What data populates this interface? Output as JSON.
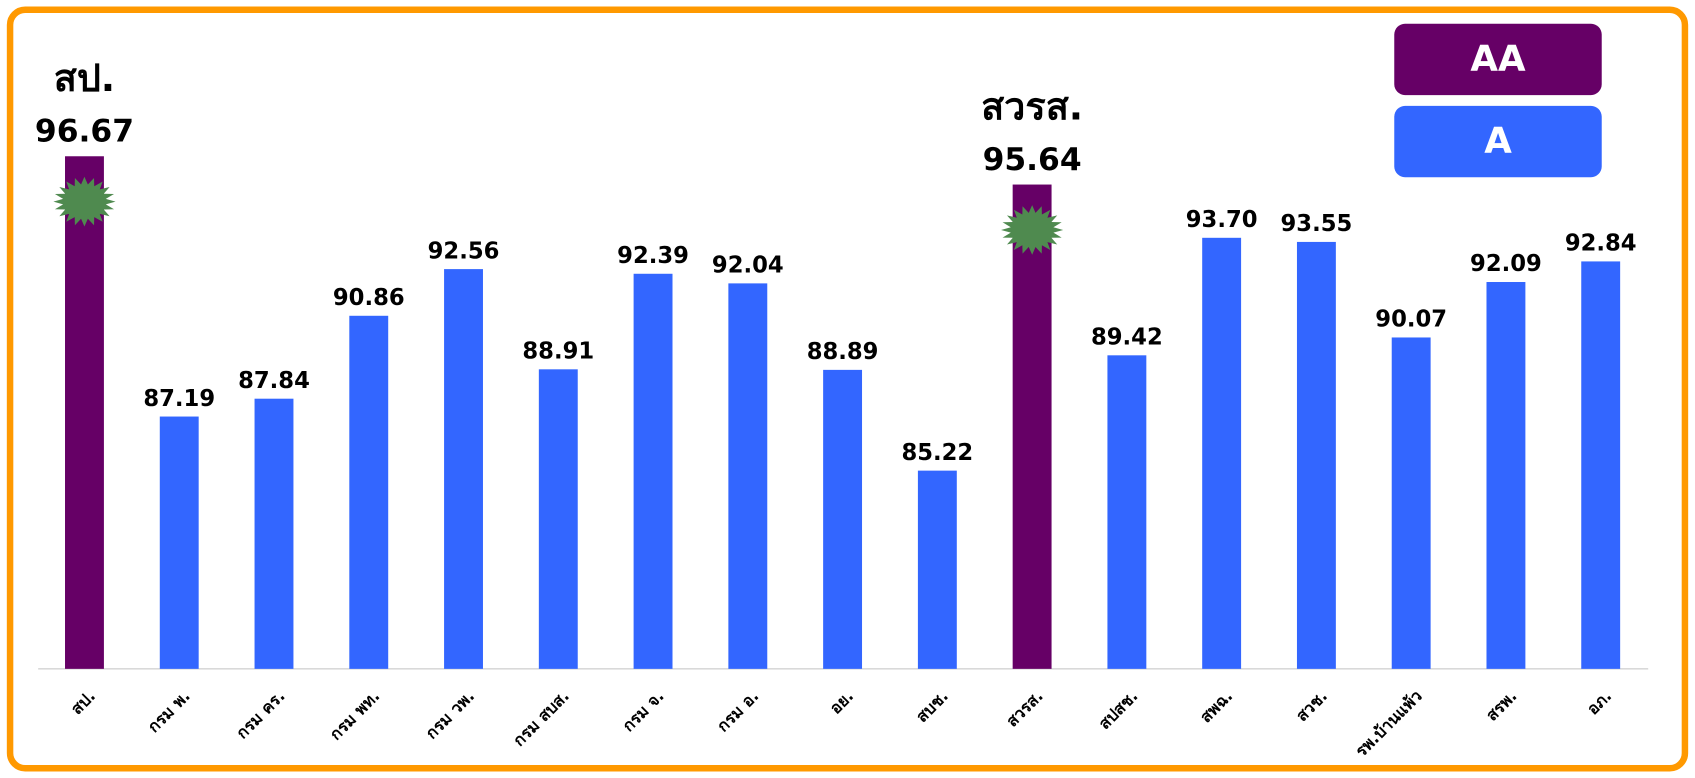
{
  "chart_data": {
    "type": "bar",
    "categories": [
      "สป.",
      "กรม พ.",
      "กรม คร.",
      "กรม พท.",
      "กรม วพ.",
      "กรม สบส.",
      "กรม จ.",
      "กรม อ.",
      "อย.",
      "สบช.",
      "สวรส.",
      "สปสช.",
      "สพฉ.",
      "สวช.",
      "รพ.บ้านแพ้ว",
      "สรพ.",
      "อภ."
    ],
    "series": [
      {
        "name": "AA",
        "color": "#660066",
        "values": [
          96.67,
          null,
          null,
          null,
          null,
          null,
          null,
          null,
          null,
          null,
          95.64,
          null,
          null,
          null,
          null,
          null,
          null
        ],
        "value_labels": [
          "96.67",
          null,
          null,
          null,
          null,
          null,
          null,
          null,
          null,
          null,
          "95.64",
          null,
          null,
          null,
          null,
          null,
          null
        ]
      },
      {
        "name": "A",
        "color": "#3366ff",
        "values": [
          null,
          87.19,
          87.84,
          90.86,
          92.56,
          88.91,
          92.39,
          92.04,
          88.89,
          85.22,
          null,
          89.42,
          93.7,
          93.55,
          90.07,
          92.09,
          92.84
        ],
        "value_labels": [
          null,
          "87.19",
          "87.84",
          "90.86",
          "92.56",
          "88.91",
          "92.39",
          "92.04",
          "88.89",
          "85.22",
          null,
          "89.42",
          "93.70",
          "93.55",
          "90.07",
          "92.09",
          "92.84"
        ]
      }
    ],
    "annotations": [
      {
        "text": "สป.",
        "category": "สป."
      },
      {
        "text": "สวรส.",
        "category": "สวรส."
      }
    ],
    "ylim": [
      78,
      100
    ],
    "grid": false,
    "legend": "upper right"
  }
}
